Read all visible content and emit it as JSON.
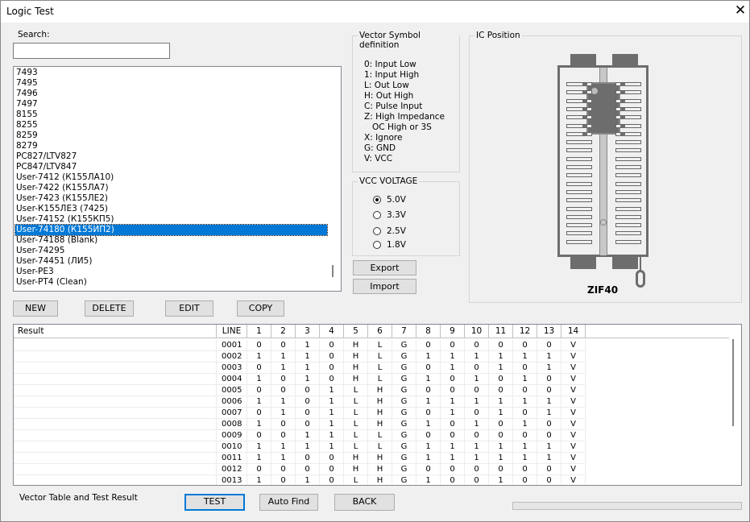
{
  "window": {
    "title": "Logic Test",
    "close": "✕"
  },
  "search": {
    "label": "Search:",
    "value": "",
    "placeholder": ""
  },
  "ic_list": {
    "items": [
      "7493",
      "7495",
      "7496",
      "7497",
      "8155",
      "8255",
      "8259",
      "8279",
      "PC827/LTV827",
      "PC847/LTV847",
      "User-7412 (К155ЛА10)",
      "User-7422 (К155ЛА7)",
      "User-7423 (К155ЛЕ2)",
      "User-К155ЛЕ3 (7425)",
      "User-74152 (К155КП5)",
      "User-74180 (К155ИП2)",
      "User-74188 (Blank)",
      "User-74295",
      "User-74451 (ЛИ5)",
      "User-РЕ3",
      "User-РТ4 (Clean)"
    ],
    "selected": "User-74180 (К155ИП2)"
  },
  "actions": {
    "new": "NEW",
    "delete": "DELETE",
    "edit": "EDIT",
    "copy": "COPY"
  },
  "vector_symbols": {
    "title": "Vector Symbol definition",
    "lines": [
      "0: Input Low",
      "1: Input High",
      "L: Out Low",
      "H: Out High",
      "C: Pulse Input",
      "Z: High Impedance",
      "   OC High or 3S",
      "X: Ignore",
      "G: GND",
      "V: VCC"
    ]
  },
  "vcc": {
    "title": "VCC VOLTAGE",
    "options": [
      "5.0V",
      "3.3V",
      "2.5V",
      "1.8V"
    ],
    "selected": "5.0V"
  },
  "io": {
    "export": "Export",
    "import": "Import"
  },
  "ic_position": {
    "title": "IC Position",
    "socket_label": "ZIF40",
    "chip_pins": 14
  },
  "table": {
    "headers": [
      "Result",
      "LINE",
      "1",
      "2",
      "3",
      "4",
      "5",
      "6",
      "7",
      "8",
      "9",
      "10",
      "11",
      "12",
      "13",
      "14"
    ],
    "rows": [
      [
        "",
        "0001",
        "0",
        "0",
        "1",
        "0",
        "H",
        "L",
        "G",
        "0",
        "0",
        "0",
        "0",
        "0",
        "0",
        "V"
      ],
      [
        "",
        "0002",
        "1",
        "1",
        "1",
        "0",
        "H",
        "L",
        "G",
        "1",
        "1",
        "1",
        "1",
        "1",
        "1",
        "V"
      ],
      [
        "",
        "0003",
        "0",
        "1",
        "1",
        "0",
        "H",
        "L",
        "G",
        "0",
        "1",
        "0",
        "1",
        "0",
        "1",
        "V"
      ],
      [
        "",
        "0004",
        "1",
        "0",
        "1",
        "0",
        "H",
        "L",
        "G",
        "1",
        "0",
        "1",
        "0",
        "1",
        "0",
        "V"
      ],
      [
        "",
        "0005",
        "0",
        "0",
        "0",
        "1",
        "L",
        "H",
        "G",
        "0",
        "0",
        "0",
        "0",
        "0",
        "0",
        "V"
      ],
      [
        "",
        "0006",
        "1",
        "1",
        "0",
        "1",
        "L",
        "H",
        "G",
        "1",
        "1",
        "1",
        "1",
        "1",
        "1",
        "V"
      ],
      [
        "",
        "0007",
        "0",
        "1",
        "0",
        "1",
        "L",
        "H",
        "G",
        "0",
        "1",
        "0",
        "1",
        "0",
        "1",
        "V"
      ],
      [
        "",
        "0008",
        "1",
        "0",
        "0",
        "1",
        "L",
        "H",
        "G",
        "1",
        "0",
        "1",
        "0",
        "1",
        "0",
        "V"
      ],
      [
        "",
        "0009",
        "0",
        "0",
        "1",
        "1",
        "L",
        "L",
        "G",
        "0",
        "0",
        "0",
        "0",
        "0",
        "0",
        "V"
      ],
      [
        "",
        "0010",
        "1",
        "1",
        "1",
        "1",
        "L",
        "L",
        "G",
        "1",
        "1",
        "1",
        "1",
        "1",
        "1",
        "V"
      ],
      [
        "",
        "0011",
        "1",
        "1",
        "0",
        "0",
        "H",
        "H",
        "G",
        "1",
        "1",
        "1",
        "1",
        "1",
        "1",
        "V"
      ],
      [
        "",
        "0012",
        "0",
        "0",
        "0",
        "0",
        "H",
        "H",
        "G",
        "0",
        "0",
        "0",
        "0",
        "0",
        "0",
        "V"
      ],
      [
        "",
        "0013",
        "1",
        "0",
        "1",
        "0",
        "L",
        "H",
        "G",
        "1",
        "0",
        "0",
        "1",
        "0",
        "0",
        "V"
      ]
    ]
  },
  "status": {
    "text": "Vector Table and Test Result",
    "progress": 0
  },
  "bottom": {
    "test": "TEST",
    "auto_find": "Auto Find",
    "back": "BACK"
  },
  "colors": {
    "selection": "#0078d7",
    "socket": "#6d6d6d"
  }
}
